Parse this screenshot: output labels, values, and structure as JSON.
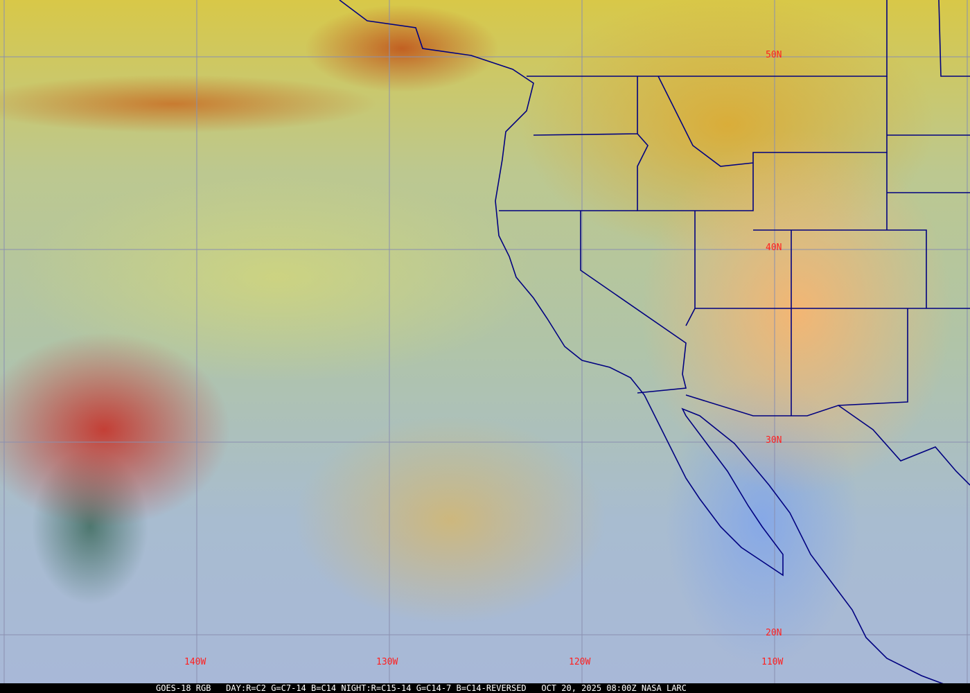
{
  "caption": {
    "satellite": "GOES-18 RGB",
    "recipe": "DAY:R=C2 G=C7-14 B=C14 NIGHT:R=C15-14 G=C14-7 B=C14-REVERSED",
    "datetime": "OCT 20, 2025 08:00Z",
    "credit": "NASA LARC"
  },
  "lat_labels": [
    "50N",
    "40N",
    "30N",
    "20N"
  ],
  "lon_labels": [
    "140W",
    "130W",
    "120W",
    "110W"
  ],
  "colors": {
    "grid": "#8888aa",
    "borders": "#000080",
    "labels": "#ff2020"
  }
}
